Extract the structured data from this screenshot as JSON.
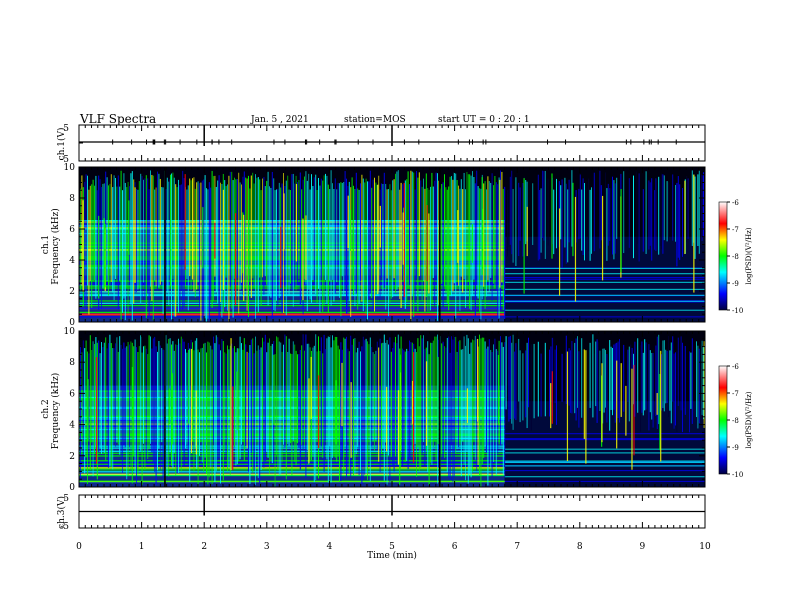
{
  "header": {
    "title": "VLF Spectra",
    "date": "Jan. 5 , 2021",
    "station": "station=MOS",
    "start": "start UT = 0 : 20 : 1"
  },
  "chart_data": {
    "type": "heatmap",
    "xlabel": "Time (min)",
    "x_ticks": [
      "0",
      "1",
      "2",
      "3",
      "4",
      "5",
      "6",
      "7",
      "8",
      "9",
      "10"
    ],
    "xlim": [
      0,
      10
    ],
    "panels": [
      {
        "id": "ch1v",
        "ylabel": "ch.1(V)",
        "ylim": [
          -5,
          5
        ],
        "y_ticks": [
          "5",
          "-5"
        ]
      },
      {
        "id": "ch1",
        "ylabel_top": "ch.1",
        "ylabel": "Frequency (kHz)",
        "ylim": [
          0,
          10
        ],
        "y_ticks": [
          "0",
          "2",
          "4",
          "6",
          "8",
          "10"
        ],
        "colorbar": {
          "label": "log(PSD)(V²/Hz)",
          "range": [
            -10,
            -6
          ],
          "ticks": [
            "-6",
            "-7",
            "-8",
            "-9",
            "-10"
          ]
        }
      },
      {
        "id": "ch2",
        "ylabel_top": "ch.2",
        "ylabel": "Frequency (kHz)",
        "ylim": [
          0,
          10
        ],
        "y_ticks": [
          "0",
          "2",
          "4",
          "6",
          "8",
          "10"
        ],
        "colorbar": {
          "label": "log(PSD)(V²/Hz)",
          "range": [
            -10,
            -6
          ],
          "ticks": [
            "-6",
            "-7",
            "-8",
            "-9",
            "-10"
          ]
        }
      },
      {
        "id": "ch3v",
        "ylabel": "ch.3(V)",
        "ylim": [
          -5,
          5
        ],
        "y_ticks": [
          "5",
          "-5"
        ]
      }
    ],
    "transition_time_min": 6.8,
    "sferic_cutoff_khz": 4.5,
    "colorscale": [
      "#000033",
      "#0000ff",
      "#00ffff",
      "#00ff00",
      "#ffff00",
      "#ff0000",
      "#ffffff"
    ]
  }
}
